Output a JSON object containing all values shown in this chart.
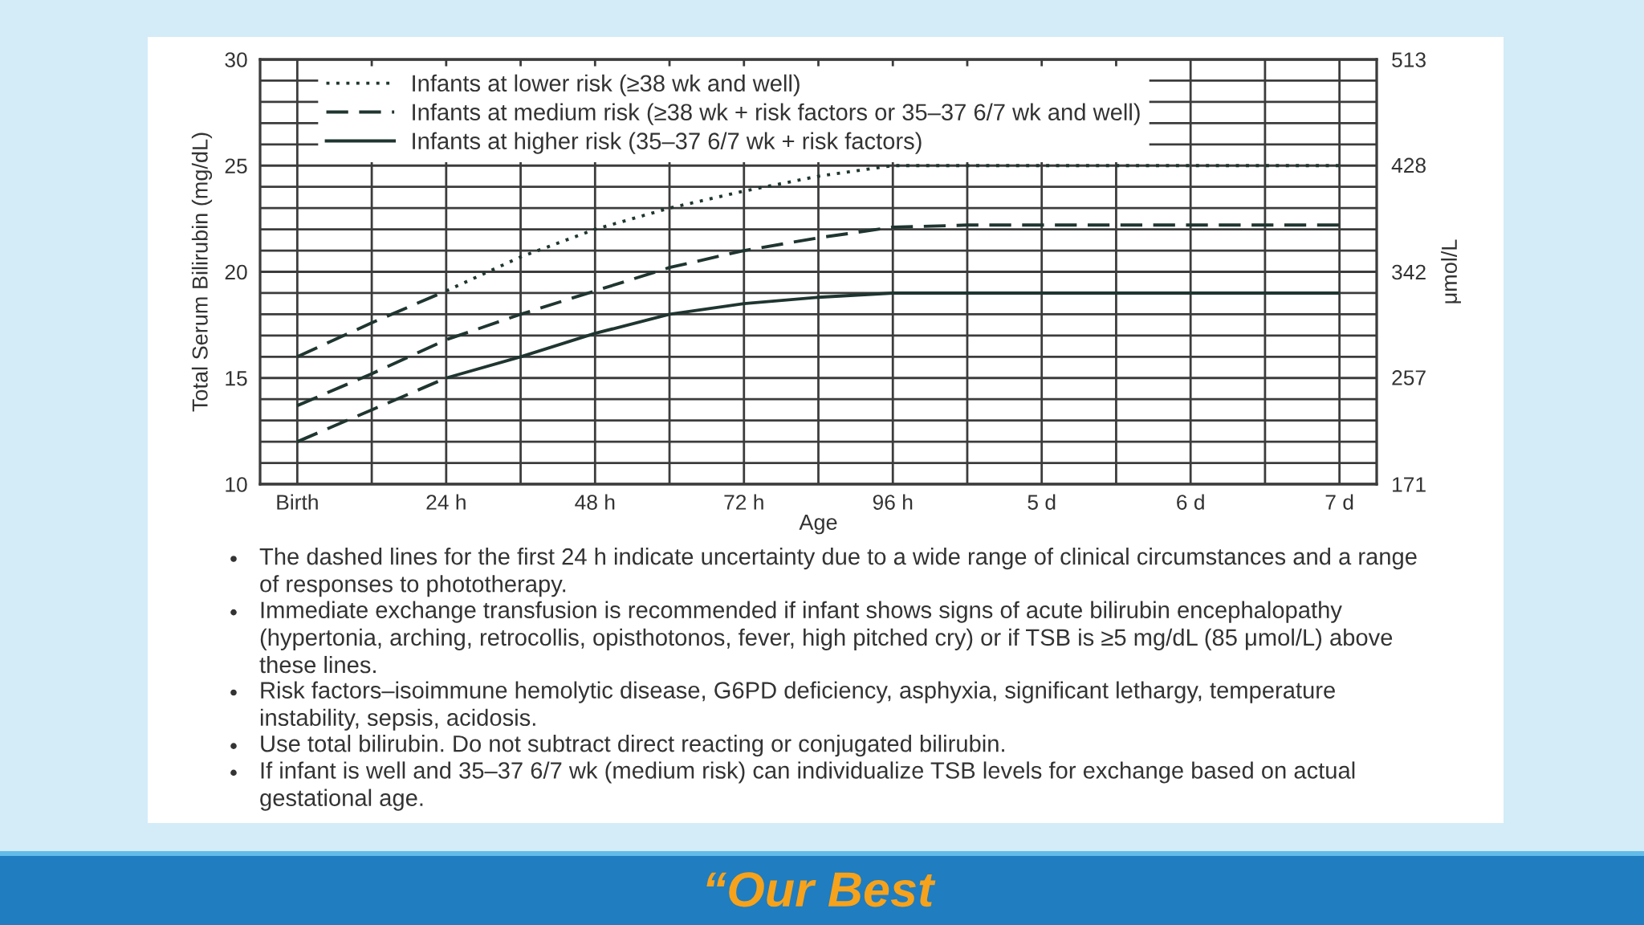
{
  "chart_data": {
    "type": "line",
    "xlabel": "Age",
    "ylabel": "Total Serum Bilirubin (mg/dL)",
    "y2label": "μmol/L",
    "categories": [
      "Birth",
      null,
      "24 h",
      null,
      "48 h",
      null,
      "72 h",
      null,
      "96 h",
      null,
      "5 d",
      null,
      "6 d",
      null,
      "7 d"
    ],
    "ylim": [
      10,
      30
    ],
    "yticks": [
      10,
      {
        "value": 11,
        "label": null
      },
      {
        "value": 12,
        "label": null
      },
      {
        "value": 13,
        "label": null
      },
      {
        "value": 14,
        "label": null
      },
      15,
      {
        "value": 16,
        "label": null
      },
      {
        "value": 17,
        "label": null
      },
      {
        "value": 18,
        "label": null
      },
      {
        "value": 19,
        "label": null
      },
      20,
      {
        "value": 21,
        "label": null
      },
      {
        "value": 22,
        "label": null
      },
      {
        "value": 23,
        "label": null
      },
      {
        "value": 24,
        "label": null
      },
      25,
      {
        "value": 26,
        "label": null
      },
      {
        "value": 27,
        "label": null
      },
      {
        "value": 28,
        "label": null
      },
      {
        "value": 29,
        "label": null
      },
      30
    ],
    "y2lim": [
      171,
      513
    ],
    "y2ticks": [
      171,
      257,
      342,
      428,
      513
    ],
    "grid": true,
    "legend": "top left",
    "series": [
      {
        "name": "Infants at lower risk (≥38 wk and well)",
        "color": "#1f3530",
        "line_style": [
          "dashed",
          "dashed",
          "dotted",
          "dotted",
          "dotted",
          "dotted",
          "dotted",
          "dotted",
          "dotted",
          "dotted",
          "dotted",
          "dotted",
          "dotted",
          "dotted"
        ],
        "values": [
          16.0,
          17.6,
          19.1,
          20.7,
          22.0,
          23.0,
          23.8,
          24.5,
          25.0,
          25.0,
          25.0,
          25.0,
          25.0,
          25.0,
          25.0
        ]
      },
      {
        "name": "Infants at medium risk (≥38 wk + risk factors or 35–37 6/7 wk and well)",
        "color": "#1f3530",
        "line_style": "dashed",
        "values": [
          13.7,
          15.2,
          16.8,
          18.0,
          19.1,
          20.2,
          21.0,
          21.6,
          22.1,
          22.2,
          22.2,
          22.2,
          22.2,
          22.2,
          22.2
        ]
      },
      {
        "name": "Infants at higher risk (35–37 6/7 wk + risk factors)",
        "color": "#1f3530",
        "line_style": [
          "dashed",
          "dashed",
          "solid",
          "solid",
          "solid",
          "solid",
          "solid",
          "solid",
          "solid",
          "solid",
          "solid",
          "solid",
          "solid",
          "solid"
        ],
        "values": [
          12.0,
          13.5,
          15.0,
          16.0,
          17.1,
          18.0,
          18.5,
          18.8,
          19.0,
          19.0,
          19.0,
          19.0,
          19.0,
          19.0,
          19.0
        ]
      }
    ],
    "annotations": [
      "The dashed lines for the first 24 h indicate uncertainty due to a wide range of clinical circumstances and a range of responses to phototherapy.",
      "Immediate exchange transfusion is recommended if infant shows signs of acute bilirubin encephalopathy (hypertonia, arching, retrocollis, opisthotonos, fever, high pitched cry) or if TSB is ≥5 mg/dL (85 μmol/L) above these lines.",
      "Risk factors–isoimmune hemolytic disease, G6PD deficiency, asphyxia, significant lethargy, temperature instability, sepsis, acidosis.",
      "Use total bilirubin. Do not subtract direct reacting or conjugated bilirubin.",
      "If infant is well and 35–37 6/7 wk (medium risk) can individualize TSB levels for exchange based on actual gestational age.",
      "“Our Best"
    ]
  }
}
